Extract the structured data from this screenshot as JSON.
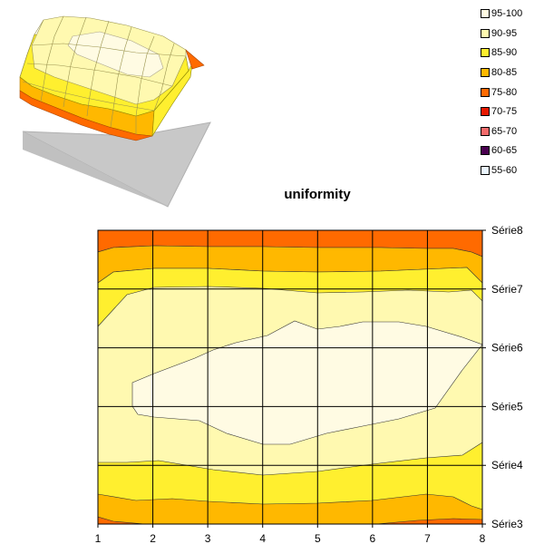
{
  "colors": {
    "b95_100": "#FFFBE3",
    "b90_95": "#FFF9B0",
    "b85_90": "#FFEF2F",
    "b80_85": "#FFB800",
    "b75_80": "#FF6A00",
    "b70_75": "#E81900",
    "b65_70": "#F36B6B",
    "b60_65": "#4A0050",
    "b55_60": "#EAF6FF",
    "plane": "#C8C8C8"
  },
  "chart_data": [
    {
      "type": "surface",
      "title": "",
      "note": "3D perspective surface thumbnail of the same uniformity grid"
    },
    {
      "type": "heatmap",
      "subtype": "filled-contour",
      "title": "uniformity",
      "x": [
        1,
        2,
        3,
        4,
        5,
        6,
        7,
        8
      ],
      "y": [
        "Série3",
        "Série4",
        "Série5",
        "Série6",
        "Série7",
        "Série8"
      ],
      "xlabel": "",
      "ylabel": "",
      "grid": true,
      "legend_position": "top-right",
      "levels": [
        "55-60",
        "60-65",
        "65-70",
        "70-75",
        "75-80",
        "80-85",
        "85-90",
        "90-95",
        "95-100"
      ],
      "values_description": "rows bottom (Série3) to top (Série8)",
      "values": [
        [
          75,
          82,
          83,
          83,
          82,
          80,
          79,
          76
        ],
        [
          86,
          88,
          87,
          86,
          86,
          87,
          88,
          89
        ],
        [
          90,
          94,
          94,
          95,
          95,
          95,
          92,
          91
        ],
        [
          90,
          94,
          96,
          97,
          97,
          97,
          95,
          93
        ],
        [
          89,
          92,
          93,
          93,
          93,
          92,
          91,
          88
        ],
        [
          79,
          77,
          77,
          78,
          78,
          78,
          78,
          79
        ]
      ]
    }
  ],
  "legend": [
    {
      "label": "95-100",
      "color": "#FFFBE3"
    },
    {
      "label": "90-95",
      "color": "#FFF9B0"
    },
    {
      "label": "85-90",
      "color": "#FFEF2F"
    },
    {
      "label": "80-85",
      "color": "#FFB800"
    },
    {
      "label": "75-80",
      "color": "#FF6A00"
    },
    {
      "label": "70-75",
      "color": "#E81900"
    },
    {
      "label": "65-70",
      "color": "#F36B6B"
    },
    {
      "label": "60-65",
      "color": "#4A0050"
    },
    {
      "label": "55-60",
      "color": "#EAF6FF"
    }
  ]
}
